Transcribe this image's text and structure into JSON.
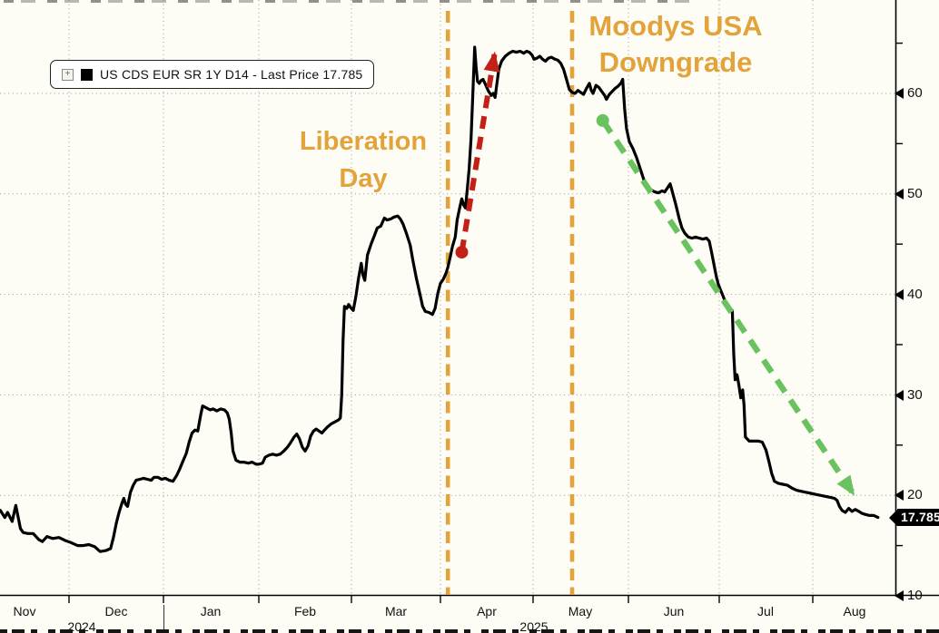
{
  "legend": {
    "label": "US CDS EUR SR 1Y D14 - Last Price 17.785"
  },
  "annotations": {
    "color": "#E2A33B",
    "liberation": {
      "line1": "Liberation",
      "line2": "Day"
    },
    "moodys": {
      "line1": "Moodys USA",
      "line2": "Downgrade"
    },
    "events": [
      {
        "name": "liberation-day",
        "month_pos": 5.08
      },
      {
        "name": "moodys-usa-downgrade",
        "month_pos": 6.41
      }
    ],
    "arrows": [
      {
        "name": "spike-up-arrow",
        "color": "#C32017",
        "from": [
          5.23,
          44.2
        ],
        "to": [
          5.585,
          64.0
        ]
      },
      {
        "name": "decline-arrow",
        "color": "#69C25E",
        "from": [
          6.73,
          57.3
        ],
        "to": [
          9.49,
          20.1
        ]
      }
    ]
  },
  "axis_y": {
    "ticks": [
      "60",
      "50",
      "40",
      "30",
      "20",
      "10"
    ],
    "last_price_label": "17.785"
  },
  "axis_x": {
    "months": [
      "Nov",
      "Dec",
      "Jan",
      "Feb",
      "Mar",
      "Apr",
      "May",
      "Jun",
      "Jul",
      "Aug"
    ],
    "years": [
      "2024",
      "2025"
    ]
  },
  "chart_data": {
    "type": "line",
    "title": "US CDS EUR SR 1Y D14",
    "legend_entry": "US CDS EUR SR 1Y D14 - Last Price 17.785",
    "last_price": 17.785,
    "grid": "dotted",
    "x_axis": {
      "unit": "fractional months since 2024-11-01",
      "tick_labels": [
        "Nov",
        "Dec",
        "Jan",
        "Feb",
        "Mar",
        "Apr",
        "May",
        "Jun",
        "Jul",
        "Aug"
      ],
      "year_labels": [
        "2024",
        "2025"
      ]
    },
    "y_axis": {
      "side": "right",
      "range": [
        10,
        69
      ],
      "major_ticks": [
        60,
        50,
        40,
        30,
        20,
        10
      ],
      "minor_tick_step": 5
    },
    "event_lines": [
      {
        "label": "Liberation Day",
        "month_pos": 5.08
      },
      {
        "label": "Moodys USA Downgrade",
        "month_pos": 6.41
      }
    ],
    "series": [
      {
        "name": "US CDS EUR SR 1Y D14",
        "color": "#000000",
        "points": [
          [
            0.25,
            18.5
          ],
          [
            0.3,
            17.8
          ],
          [
            0.33,
            18.3
          ],
          [
            0.38,
            17.4
          ],
          [
            0.42,
            19.0
          ],
          [
            0.45,
            17.6
          ],
          [
            0.47,
            16.7
          ],
          [
            0.5,
            16.3
          ],
          [
            0.55,
            16.2
          ],
          [
            0.61,
            16.2
          ],
          [
            0.67,
            15.6
          ],
          [
            0.71,
            15.4
          ],
          [
            0.76,
            15.9
          ],
          [
            0.82,
            15.7
          ],
          [
            0.89,
            15.8
          ],
          [
            0.96,
            15.5
          ],
          [
            1.02,
            15.3
          ],
          [
            1.09,
            15.0
          ],
          [
            1.15,
            15.0
          ],
          [
            1.21,
            15.1
          ],
          [
            1.27,
            14.9
          ],
          [
            1.33,
            14.4
          ],
          [
            1.39,
            14.5
          ],
          [
            1.44,
            14.7
          ],
          [
            1.47,
            15.8
          ],
          [
            1.5,
            17.2
          ],
          [
            1.53,
            18.3
          ],
          [
            1.56,
            19.2
          ],
          [
            1.58,
            19.7
          ],
          [
            1.6,
            19.1
          ],
          [
            1.62,
            18.9
          ],
          [
            1.65,
            20.3
          ],
          [
            1.68,
            21.0
          ],
          [
            1.71,
            21.5
          ],
          [
            1.75,
            21.6
          ],
          [
            1.79,
            21.7
          ],
          [
            1.83,
            21.6
          ],
          [
            1.87,
            21.5
          ],
          [
            1.9,
            21.8
          ],
          [
            1.94,
            21.8
          ],
          [
            1.98,
            21.6
          ],
          [
            2.02,
            21.7
          ],
          [
            2.06,
            21.5
          ],
          [
            2.1,
            21.4
          ],
          [
            2.14,
            22.0
          ],
          [
            2.17,
            22.6
          ],
          [
            2.2,
            23.3
          ],
          [
            2.24,
            24.2
          ],
          [
            2.27,
            25.3
          ],
          [
            2.3,
            26.2
          ],
          [
            2.33,
            26.5
          ],
          [
            2.36,
            26.4
          ],
          [
            2.39,
            28.0
          ],
          [
            2.41,
            28.9
          ],
          [
            2.45,
            28.7
          ],
          [
            2.49,
            28.5
          ],
          [
            2.52,
            28.6
          ],
          [
            2.56,
            28.4
          ],
          [
            2.6,
            28.6
          ],
          [
            2.64,
            28.5
          ],
          [
            2.67,
            28.2
          ],
          [
            2.69,
            27.6
          ],
          [
            2.71,
            26.2
          ],
          [
            2.73,
            24.4
          ],
          [
            2.76,
            23.5
          ],
          [
            2.8,
            23.3
          ],
          [
            2.84,
            23.3
          ],
          [
            2.89,
            23.2
          ],
          [
            2.93,
            23.3
          ],
          [
            2.97,
            23.1
          ],
          [
            3.0,
            23.1
          ],
          [
            3.04,
            23.2
          ],
          [
            3.07,
            23.8
          ],
          [
            3.11,
            24.0
          ],
          [
            3.15,
            24.1
          ],
          [
            3.19,
            24.0
          ],
          [
            3.23,
            24.1
          ],
          [
            3.27,
            24.4
          ],
          [
            3.31,
            24.8
          ],
          [
            3.34,
            25.2
          ],
          [
            3.38,
            25.8
          ],
          [
            3.41,
            26.1
          ],
          [
            3.44,
            25.6
          ],
          [
            3.47,
            24.8
          ],
          [
            3.5,
            24.4
          ],
          [
            3.53,
            24.9
          ],
          [
            3.56,
            25.9
          ],
          [
            3.59,
            26.4
          ],
          [
            3.62,
            26.6
          ],
          [
            3.65,
            26.4
          ],
          [
            3.68,
            26.2
          ],
          [
            3.71,
            26.5
          ],
          [
            3.74,
            26.8
          ],
          [
            3.78,
            27.1
          ],
          [
            3.82,
            27.3
          ],
          [
            3.86,
            27.5
          ],
          [
            3.88,
            27.7
          ],
          [
            3.895,
            30.0
          ],
          [
            3.91,
            35.5
          ],
          [
            3.925,
            38.8
          ],
          [
            3.95,
            38.6
          ],
          [
            3.97,
            39.0
          ],
          [
            3.99,
            38.7
          ],
          [
            4.02,
            38.4
          ],
          [
            4.05,
            39.8
          ],
          [
            4.08,
            41.6
          ],
          [
            4.11,
            43.1
          ],
          [
            4.13,
            41.9
          ],
          [
            4.15,
            41.4
          ],
          [
            4.18,
            43.9
          ],
          [
            4.22,
            45.0
          ],
          [
            4.26,
            45.9
          ],
          [
            4.29,
            46.6
          ],
          [
            4.33,
            46.8
          ],
          [
            4.37,
            47.6
          ],
          [
            4.4,
            47.4
          ],
          [
            4.44,
            47.5
          ],
          [
            4.48,
            47.7
          ],
          [
            4.52,
            47.8
          ],
          [
            4.55,
            47.5
          ],
          [
            4.58,
            47.0
          ],
          [
            4.62,
            46.0
          ],
          [
            4.66,
            44.9
          ],
          [
            4.69,
            43.4
          ],
          [
            4.73,
            41.6
          ],
          [
            4.77,
            40.0
          ],
          [
            4.8,
            38.8
          ],
          [
            4.83,
            38.3
          ],
          [
            4.87,
            38.2
          ],
          [
            4.91,
            38.0
          ],
          [
            4.94,
            38.6
          ],
          [
            4.97,
            40.1
          ],
          [
            5.0,
            41.1
          ],
          [
            5.03,
            41.5
          ],
          [
            5.06,
            42.1
          ],
          [
            5.08,
            42.7
          ],
          [
            5.11,
            43.9
          ],
          [
            5.13,
            44.8
          ],
          [
            5.16,
            45.7
          ],
          [
            5.18,
            47.4
          ],
          [
            5.21,
            48.7
          ],
          [
            5.23,
            49.5
          ],
          [
            5.25,
            48.9
          ],
          [
            5.27,
            48.6
          ],
          [
            5.29,
            50.5
          ],
          [
            5.31,
            52.5
          ],
          [
            5.33,
            55.5
          ],
          [
            5.35,
            60.0
          ],
          [
            5.37,
            64.6
          ],
          [
            5.385,
            62.6
          ],
          [
            5.4,
            61.2
          ],
          [
            5.42,
            61.0
          ],
          [
            5.44,
            61.3
          ],
          [
            5.46,
            61.4
          ],
          [
            5.49,
            60.8
          ],
          [
            5.52,
            60.2
          ],
          [
            5.55,
            59.8
          ],
          [
            5.57,
            60.0
          ],
          [
            5.59,
            59.6
          ],
          [
            5.61,
            61.0
          ],
          [
            5.63,
            62.4
          ],
          [
            5.66,
            63.2
          ],
          [
            5.7,
            63.7
          ],
          [
            5.74,
            64.0
          ],
          [
            5.78,
            64.2
          ],
          [
            5.82,
            64.1
          ],
          [
            5.86,
            64.2
          ],
          [
            5.9,
            64.0
          ],
          [
            5.93,
            64.2
          ],
          [
            5.96,
            64.1
          ],
          [
            5.99,
            63.8
          ],
          [
            6.01,
            63.4
          ],
          [
            6.04,
            63.5
          ],
          [
            6.07,
            63.7
          ],
          [
            6.1,
            63.4
          ],
          [
            6.13,
            63.2
          ],
          [
            6.16,
            63.5
          ],
          [
            6.19,
            63.6
          ],
          [
            6.23,
            63.4
          ],
          [
            6.26,
            63.3
          ],
          [
            6.29,
            63.0
          ],
          [
            6.32,
            62.4
          ],
          [
            6.35,
            61.4
          ],
          [
            6.38,
            60.4
          ],
          [
            6.41,
            60.1
          ],
          [
            6.44,
            60.0
          ],
          [
            6.47,
            60.3
          ],
          [
            6.5,
            60.1
          ],
          [
            6.53,
            59.9
          ],
          [
            6.56,
            60.5
          ],
          [
            6.59,
            61.0
          ],
          [
            6.61,
            60.3
          ],
          [
            6.63,
            60.0
          ],
          [
            6.66,
            60.8
          ],
          [
            6.69,
            60.6
          ],
          [
            6.72,
            60.2
          ],
          [
            6.75,
            59.8
          ],
          [
            6.77,
            59.4
          ],
          [
            6.8,
            59.9
          ],
          [
            6.83,
            60.2
          ],
          [
            6.86,
            60.5
          ],
          [
            6.89,
            60.7
          ],
          [
            6.92,
            61.0
          ],
          [
            6.94,
            61.4
          ],
          [
            6.96,
            58.5
          ],
          [
            6.98,
            56.5
          ],
          [
            7.01,
            55.2
          ],
          [
            7.05,
            54.5
          ],
          [
            7.09,
            53.6
          ],
          [
            7.13,
            52.5
          ],
          [
            7.17,
            51.4
          ],
          [
            7.21,
            50.8
          ],
          [
            7.25,
            50.4
          ],
          [
            7.29,
            50.2
          ],
          [
            7.33,
            50.1
          ],
          [
            7.37,
            50.3
          ],
          [
            7.4,
            50.2
          ],
          [
            7.43,
            50.6
          ],
          [
            7.46,
            51.0
          ],
          [
            7.49,
            50.0
          ],
          [
            7.52,
            49.0
          ],
          [
            7.56,
            47.5
          ],
          [
            7.59,
            46.6
          ],
          [
            7.62,
            46.1
          ],
          [
            7.66,
            45.7
          ],
          [
            7.7,
            45.6
          ],
          [
            7.74,
            45.7
          ],
          [
            7.78,
            45.6
          ],
          [
            7.82,
            45.5
          ],
          [
            7.86,
            45.6
          ],
          [
            7.89,
            45.3
          ],
          [
            7.92,
            44.0
          ],
          [
            7.95,
            42.6
          ],
          [
            7.97,
            41.7
          ],
          [
            7.99,
            41.0
          ],
          [
            8.02,
            40.3
          ],
          [
            8.05,
            39.6
          ],
          [
            8.08,
            39.0
          ],
          [
            8.11,
            38.6
          ],
          [
            8.14,
            38.4
          ],
          [
            8.155,
            34.0
          ],
          [
            8.17,
            31.5
          ],
          [
            8.19,
            32.0
          ],
          [
            8.21,
            31.0
          ],
          [
            8.23,
            29.7
          ],
          [
            8.25,
            30.5
          ],
          [
            8.265,
            29.0
          ],
          [
            8.28,
            25.8
          ],
          [
            8.32,
            25.4
          ],
          [
            8.37,
            25.4
          ],
          [
            8.42,
            25.4
          ],
          [
            8.46,
            25.3
          ],
          [
            8.5,
            24.5
          ],
          [
            8.53,
            23.4
          ],
          [
            8.56,
            22.2
          ],
          [
            8.59,
            21.4
          ],
          [
            8.63,
            21.2
          ],
          [
            8.68,
            21.1
          ],
          [
            8.73,
            21.0
          ],
          [
            8.78,
            20.7
          ],
          [
            8.83,
            20.5
          ],
          [
            8.88,
            20.4
          ],
          [
            8.93,
            20.3
          ],
          [
            8.98,
            20.2
          ],
          [
            9.03,
            20.1
          ],
          [
            9.09,
            20.0
          ],
          [
            9.15,
            19.9
          ],
          [
            9.21,
            19.8
          ],
          [
            9.26,
            19.7
          ],
          [
            9.29,
            19.5
          ],
          [
            9.32,
            18.9
          ],
          [
            9.35,
            18.5
          ],
          [
            9.39,
            18.3
          ],
          [
            9.43,
            18.7
          ],
          [
            9.47,
            18.4
          ],
          [
            9.51,
            18.6
          ],
          [
            9.55,
            18.4
          ],
          [
            9.59,
            18.2
          ],
          [
            9.63,
            18.1
          ],
          [
            9.68,
            18.0
          ],
          [
            9.73,
            18.0
          ],
          [
            9.78,
            17.8
          ]
        ]
      }
    ]
  }
}
